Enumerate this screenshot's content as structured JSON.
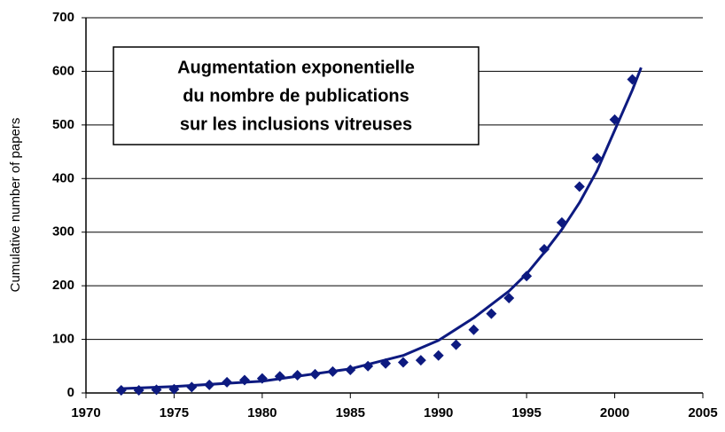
{
  "chart_data": {
    "type": "scatter",
    "ylabel": "Cumulative number of papers",
    "annotation": [
      "Augmentation exponentielle",
      "du nombre de publications",
      "sur les inclusions vitreuses"
    ],
    "xlim": [
      1970,
      2005
    ],
    "xticks": [
      1970,
      1975,
      1980,
      1985,
      1990,
      1995,
      2000,
      2005
    ],
    "ylim": [
      0,
      700
    ],
    "yticks": [
      0,
      100,
      200,
      300,
      400,
      500,
      600,
      700
    ],
    "grid": true,
    "series": [
      {
        "mode": "markers",
        "color": "#0d1a80",
        "x": [
          1972,
          1973,
          1974,
          1975,
          1976,
          1977,
          1978,
          1979,
          1980,
          1981,
          1982,
          1983,
          1984,
          1985,
          1986,
          1987,
          1988,
          1989,
          1990,
          1991,
          1992,
          1993,
          1994,
          1995,
          1996,
          1997,
          1998,
          1999,
          2000,
          2001
        ],
        "values": [
          5,
          5,
          6,
          7,
          11,
          15,
          20,
          24,
          27,
          31,
          33,
          35,
          40,
          43,
          50,
          55,
          57,
          61,
          70,
          90,
          118,
          148,
          177,
          218,
          268,
          318,
          385,
          438,
          510,
          585
        ]
      },
      {
        "mode": "lines",
        "color": "#0d1a80",
        "x": [
          1972,
          1975,
          1980,
          1985,
          1988,
          1990,
          1992,
          1994,
          1995,
          1996,
          1997,
          1998,
          1999,
          2000,
          2001,
          2001.5
        ],
        "values": [
          8,
          12,
          22,
          45,
          70,
          98,
          140,
          190,
          222,
          262,
          305,
          355,
          415,
          490,
          565,
          607
        ]
      }
    ]
  }
}
